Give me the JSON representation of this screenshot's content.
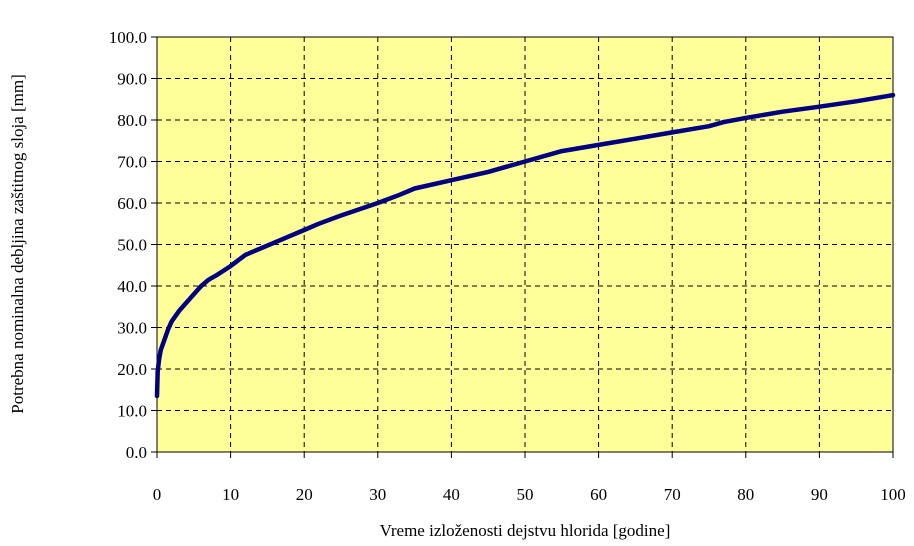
{
  "chart_data": {
    "type": "line",
    "title": "",
    "xlabel": "Vreme izloženosti dejstvu hlorida [godine]",
    "ylabel": "Potrebna nominalna debljina zaštitnog sloja [mm]",
    "xlim": [
      0,
      100
    ],
    "ylim": [
      0,
      100
    ],
    "x_ticks": [
      "0",
      "10",
      "20",
      "30",
      "40",
      "50",
      "60",
      "70",
      "80",
      "90",
      "100"
    ],
    "y_ticks": [
      "0.0",
      "10.0",
      "20.0",
      "30.0",
      "40.0",
      "50.0",
      "60.0",
      "70.0",
      "80.0",
      "90.0",
      "100.0"
    ],
    "grid": true,
    "plot_background": "#ffff99",
    "line_color": "#000080",
    "series": [
      {
        "x": [
          0,
          0.1,
          0.3,
          0.5,
          1,
          1.5,
          2,
          3,
          4,
          5,
          6,
          7,
          8,
          10,
          12,
          14,
          16,
          18,
          20,
          22,
          25,
          30,
          33,
          35,
          40,
          45,
          50,
          55,
          60,
          65,
          70,
          75,
          77,
          80,
          85,
          90,
          95,
          100
        ],
        "y": [
          13.5,
          19.5,
          22.5,
          24.5,
          27,
          29.5,
          31.5,
          34,
          36,
          38,
          40,
          41.5,
          42.5,
          44.8,
          47.5,
          49,
          50.5,
          52,
          53.5,
          55,
          57,
          60,
          62,
          63.5,
          65.5,
          67.5,
          70,
          72.5,
          74,
          75.5,
          77,
          78.5,
          79.5,
          80.5,
          82,
          83.2,
          84.5,
          86
        ]
      }
    ]
  }
}
